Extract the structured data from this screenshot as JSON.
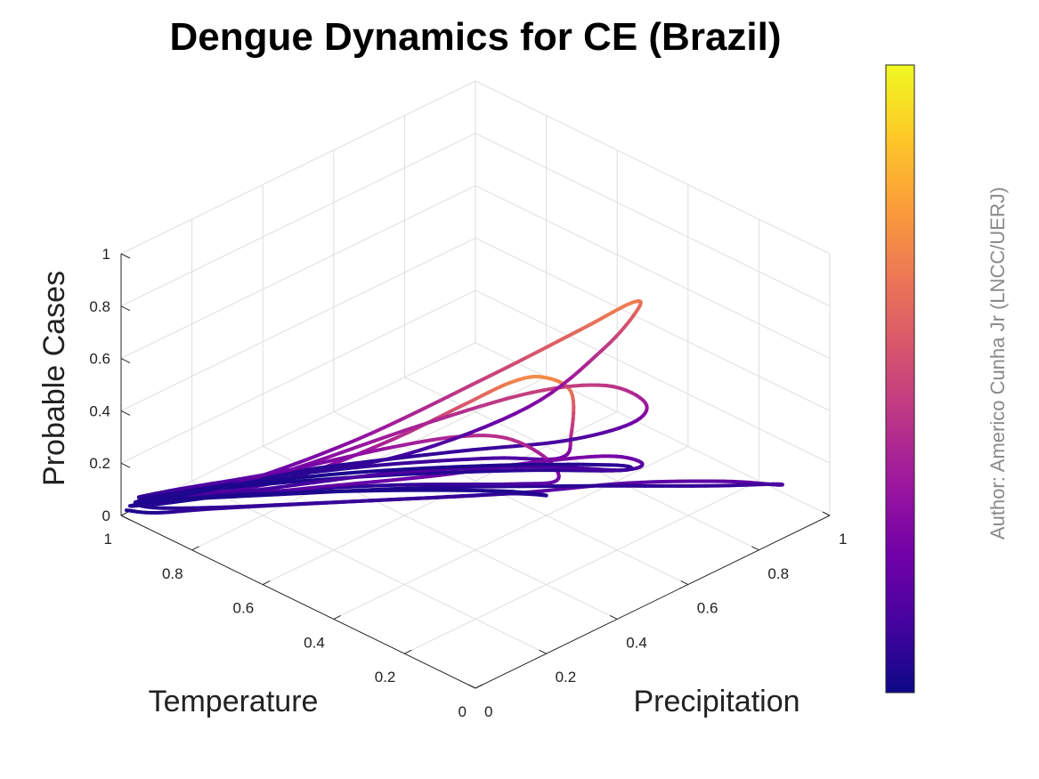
{
  "chart_data": {
    "type": "line",
    "title": "Dengue Dynamics for CE (Brazil)",
    "xlabel": "Temperature",
    "ylabel": "Precipitation",
    "zlabel": "Probable Cases",
    "xlim": [
      0,
      1
    ],
    "ylim": [
      0,
      1
    ],
    "zlim": [
      0,
      1
    ],
    "x_ticks": [
      "0",
      "0.2",
      "0.4",
      "0.6",
      "0.8",
      "1"
    ],
    "y_ticks": [
      "0",
      "0.2",
      "0.4",
      "0.6",
      "0.8",
      "1"
    ],
    "z_ticks": [
      "0",
      "0.2",
      "0.4",
      "0.6",
      "0.8",
      "1"
    ],
    "grid": true,
    "colormap": "plasma",
    "colormap_stops": [
      "#0d0887",
      "#46039f",
      "#7201a8",
      "#9c179e",
      "#bd3786",
      "#d8576b",
      "#ed7953",
      "#fb9f3a",
      "#fdca26",
      "#f0f921"
    ],
    "colorbar_range": [
      0,
      1
    ],
    "colorbar_placement": "right",
    "series": [
      {
        "points": [
          [
            0.985,
            0.0,
            0.03
          ],
          [
            0.92,
            0.02,
            0.05
          ],
          [
            0.82,
            0.1,
            0.08
          ],
          [
            0.62,
            0.28,
            0.12
          ],
          [
            0.4,
            0.5,
            0.15
          ],
          [
            0.25,
            0.68,
            0.17
          ],
          [
            0.12,
            0.82,
            0.17
          ],
          [
            0.05,
            0.9,
            0.15
          ],
          [
            0.08,
            0.92,
            0.12
          ],
          [
            0.2,
            0.85,
            0.08
          ],
          [
            0.4,
            0.68,
            0.06
          ],
          [
            0.62,
            0.48,
            0.04
          ],
          [
            0.8,
            0.28,
            0.03
          ],
          [
            0.93,
            0.12,
            0.03
          ],
          [
            0.98,
            0.02,
            0.05
          ],
          [
            0.9,
            0.05,
            0.1
          ],
          [
            0.72,
            0.18,
            0.2
          ],
          [
            0.55,
            0.3,
            0.38
          ],
          [
            0.42,
            0.38,
            0.55
          ],
          [
            0.32,
            0.42,
            0.68
          ],
          [
            0.26,
            0.45,
            0.72
          ],
          [
            0.23,
            0.5,
            0.65
          ],
          [
            0.28,
            0.55,
            0.42
          ],
          [
            0.38,
            0.62,
            0.22
          ],
          [
            0.55,
            0.6,
            0.12
          ],
          [
            0.72,
            0.45,
            0.08
          ],
          [
            0.88,
            0.25,
            0.05
          ],
          [
            0.96,
            0.1,
            0.04
          ],
          [
            0.97,
            0.02,
            0.06
          ],
          [
            0.85,
            0.08,
            0.12
          ],
          [
            0.7,
            0.2,
            0.25
          ],
          [
            0.55,
            0.4,
            0.38
          ],
          [
            0.42,
            0.58,
            0.47
          ],
          [
            0.35,
            0.72,
            0.45
          ],
          [
            0.32,
            0.8,
            0.35
          ],
          [
            0.38,
            0.82,
            0.22
          ],
          [
            0.5,
            0.75,
            0.12
          ],
          [
            0.65,
            0.6,
            0.08
          ],
          [
            0.82,
            0.38,
            0.05
          ],
          [
            0.95,
            0.15,
            0.04
          ],
          [
            0.99,
            0.04,
            0.05
          ],
          [
            0.92,
            0.08,
            0.1
          ],
          [
            0.75,
            0.2,
            0.2
          ],
          [
            0.58,
            0.32,
            0.32
          ],
          [
            0.45,
            0.4,
            0.4
          ],
          [
            0.36,
            0.45,
            0.42
          ],
          [
            0.3,
            0.5,
            0.35
          ],
          [
            0.32,
            0.55,
            0.22
          ],
          [
            0.45,
            0.55,
            0.12
          ],
          [
            0.65,
            0.42,
            0.07
          ],
          [
            0.85,
            0.22,
            0.04
          ],
          [
            0.96,
            0.06,
            0.03
          ],
          [
            0.93,
            0.04,
            0.08
          ],
          [
            0.8,
            0.12,
            0.13
          ],
          [
            0.65,
            0.25,
            0.18
          ],
          [
            0.5,
            0.4,
            0.22
          ],
          [
            0.38,
            0.55,
            0.25
          ],
          [
            0.3,
            0.68,
            0.24
          ],
          [
            0.28,
            0.75,
            0.18
          ],
          [
            0.35,
            0.76,
            0.1
          ],
          [
            0.52,
            0.65,
            0.06
          ],
          [
            0.72,
            0.45,
            0.04
          ],
          [
            0.9,
            0.22,
            0.03
          ],
          [
            0.98,
            0.06,
            0.04
          ],
          [
            0.95,
            0.03,
            0.07
          ],
          [
            0.82,
            0.12,
            0.15
          ],
          [
            0.66,
            0.32,
            0.3
          ],
          [
            0.52,
            0.55,
            0.48
          ],
          [
            0.42,
            0.72,
            0.62
          ],
          [
            0.38,
            0.82,
            0.68
          ],
          [
            0.4,
            0.86,
            0.62
          ],
          [
            0.46,
            0.82,
            0.45
          ],
          [
            0.55,
            0.7,
            0.25
          ],
          [
            0.7,
            0.5,
            0.1
          ],
          [
            0.85,
            0.3,
            0.05
          ],
          [
            0.95,
            0.12,
            0.03
          ],
          [
            0.99,
            0.02,
            0.03
          ],
          [
            0.93,
            0.06,
            0.06
          ],
          [
            0.8,
            0.2,
            0.1
          ],
          [
            0.62,
            0.42,
            0.14
          ],
          [
            0.45,
            0.62,
            0.14
          ],
          [
            0.35,
            0.76,
            0.1
          ],
          [
            0.4,
            0.8,
            0.06
          ],
          [
            0.58,
            0.65,
            0.04
          ],
          [
            0.78,
            0.42,
            0.03
          ],
          [
            0.93,
            0.18,
            0.03
          ],
          [
            0.98,
            0.04,
            0.04
          ],
          [
            0.94,
            0.03,
            0.05
          ],
          [
            0.84,
            0.1,
            0.07
          ],
          [
            0.7,
            0.25,
            0.08
          ],
          [
            0.56,
            0.42,
            0.08
          ],
          [
            0.46,
            0.56,
            0.07
          ],
          [
            0.42,
            0.62,
            0.05
          ],
          [
            0.5,
            0.58,
            0.04
          ],
          [
            0.66,
            0.44,
            0.03
          ],
          [
            0.84,
            0.24,
            0.03
          ],
          [
            0.96,
            0.08,
            0.03
          ],
          [
            0.985,
            0.01,
            0.04
          ]
        ]
      }
    ]
  },
  "author": "Author: Americo Cunha Jr (LNCC/UERJ)"
}
